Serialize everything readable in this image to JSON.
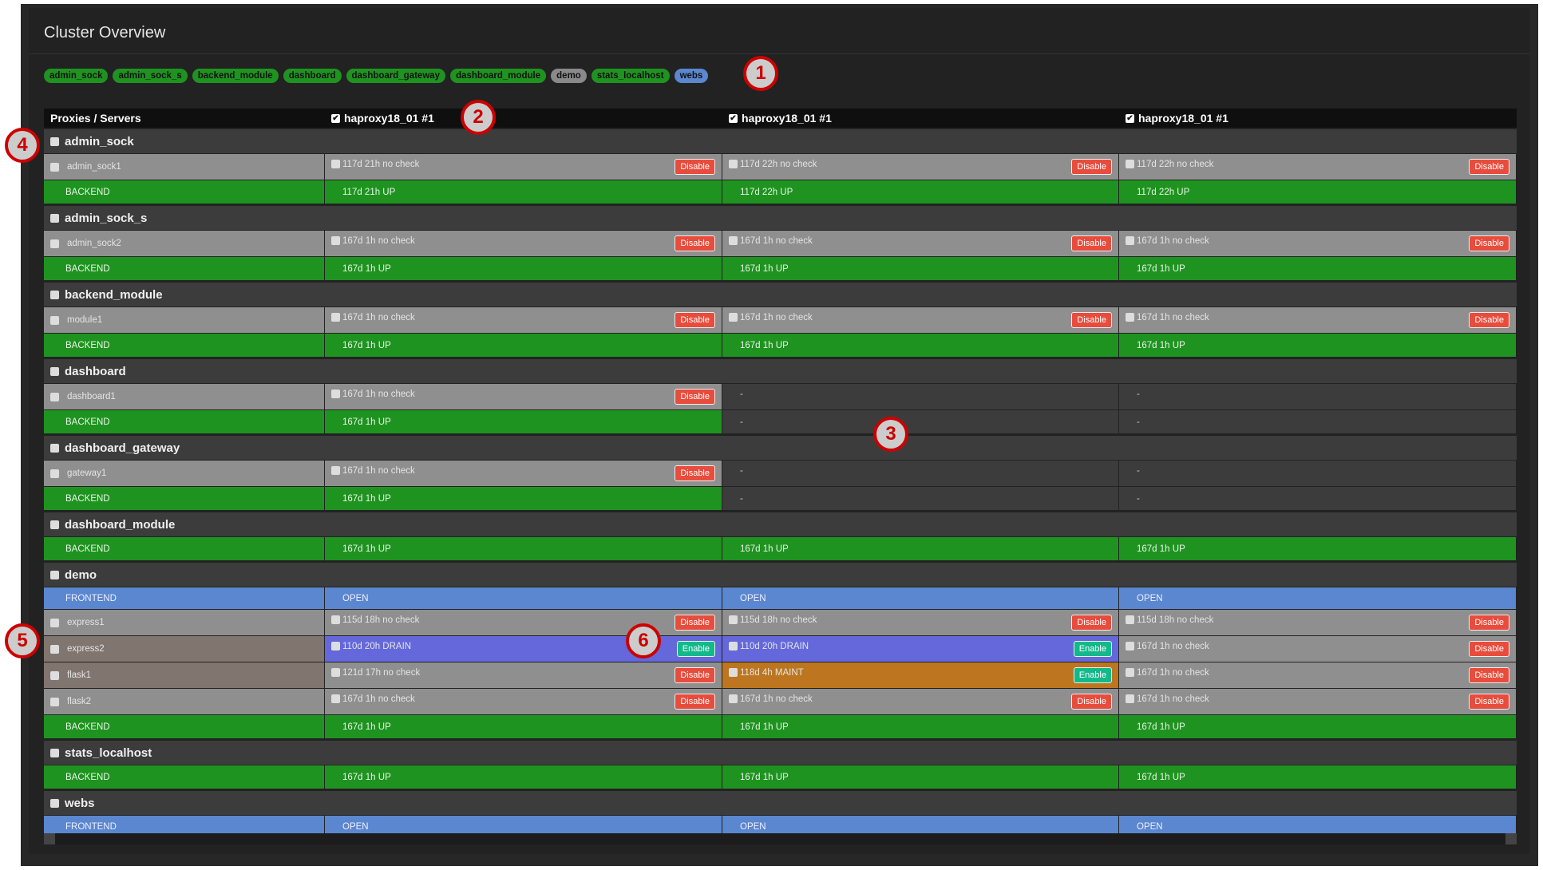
{
  "title": "Cluster Overview",
  "colors": {
    "up": "#1f9320",
    "open": "#5a87cf",
    "drain": "#6468db",
    "maint": "#bd761f",
    "disable": "#e74c3c",
    "enable": "#13b98a",
    "nocheck": "#8f8f8f"
  },
  "pills": [
    {
      "label": "admin_sock",
      "color": "#1f9320"
    },
    {
      "label": "admin_sock_s",
      "color": "#1f9320"
    },
    {
      "label": "backend_module",
      "color": "#1f9320"
    },
    {
      "label": "dashboard",
      "color": "#1f9320"
    },
    {
      "label": "dashboard_gateway",
      "color": "#1f9320"
    },
    {
      "label": "dashboard_module",
      "color": "#1f9320"
    },
    {
      "label": "demo",
      "color": "#8a8a8a"
    },
    {
      "label": "stats_localhost",
      "color": "#1f9320"
    },
    {
      "label": "webs",
      "color": "#5a87cf"
    }
  ],
  "header": {
    "first": "Proxies / Servers",
    "nodes": [
      "haproxy18_01 #1",
      "haproxy18_01 #1",
      "haproxy18_01 #1"
    ]
  },
  "groups": [
    {
      "name": "admin_sock",
      "rows": [
        {
          "type": "server",
          "label": "admin_sock1",
          "cells": [
            {
              "text": "117d 21h no check",
              "button": "Disable"
            },
            {
              "text": "117d 22h no check",
              "button": "Disable"
            },
            {
              "text": "117d 22h no check",
              "button": "Disable"
            }
          ]
        },
        {
          "type": "backend",
          "label": "BACKEND",
          "cells": [
            {
              "text": "117d 21h UP"
            },
            {
              "text": "117d 22h UP"
            },
            {
              "text": "117d 22h UP"
            }
          ]
        }
      ]
    },
    {
      "name": "admin_sock_s",
      "rows": [
        {
          "type": "server",
          "label": "admin_sock2",
          "cells": [
            {
              "text": "167d 1h no check",
              "button": "Disable"
            },
            {
              "text": "167d 1h no check",
              "button": "Disable"
            },
            {
              "text": "167d 1h no check",
              "button": "Disable"
            }
          ]
        },
        {
          "type": "backend",
          "label": "BACKEND",
          "cells": [
            {
              "text": "167d 1h UP"
            },
            {
              "text": "167d 1h UP"
            },
            {
              "text": "167d 1h UP"
            }
          ]
        }
      ]
    },
    {
      "name": "backend_module",
      "rows": [
        {
          "type": "server",
          "label": "module1",
          "cells": [
            {
              "text": "167d 1h no check",
              "button": "Disable"
            },
            {
              "text": "167d 1h no check",
              "button": "Disable"
            },
            {
              "text": "167d 1h no check",
              "button": "Disable"
            }
          ]
        },
        {
          "type": "backend",
          "label": "BACKEND",
          "cells": [
            {
              "text": "167d 1h UP"
            },
            {
              "text": "167d 1h UP"
            },
            {
              "text": "167d 1h UP"
            }
          ]
        }
      ]
    },
    {
      "name": "dashboard",
      "rows": [
        {
          "type": "server",
          "label": "dashboard1",
          "cells": [
            {
              "text": "167d 1h no check",
              "button": "Disable"
            },
            {
              "text": "-",
              "empty": true
            },
            {
              "text": "-",
              "empty": true
            }
          ]
        },
        {
          "type": "backend",
          "label": "BACKEND",
          "cells": [
            {
              "text": "167d 1h UP"
            },
            {
              "text": "-",
              "empty": true
            },
            {
              "text": "-",
              "empty": true
            }
          ]
        }
      ]
    },
    {
      "name": "dashboard_gateway",
      "rows": [
        {
          "type": "server",
          "label": "gateway1",
          "cells": [
            {
              "text": "167d 1h no check",
              "button": "Disable"
            },
            {
              "text": "-",
              "empty": true
            },
            {
              "text": "-",
              "empty": true
            }
          ]
        },
        {
          "type": "backend",
          "label": "BACKEND",
          "cells": [
            {
              "text": "167d 1h UP"
            },
            {
              "text": "-",
              "empty": true
            },
            {
              "text": "-",
              "empty": true
            }
          ]
        }
      ]
    },
    {
      "name": "dashboard_module",
      "rows": [
        {
          "type": "backend",
          "label": "BACKEND",
          "cells": [
            {
              "text": "167d 1h UP"
            },
            {
              "text": "167d 1h UP"
            },
            {
              "text": "167d 1h UP"
            }
          ]
        }
      ]
    },
    {
      "name": "demo",
      "rows": [
        {
          "type": "frontend",
          "label": "FRONTEND",
          "cells": [
            {
              "text": "OPEN"
            },
            {
              "text": "OPEN"
            },
            {
              "text": "OPEN"
            }
          ]
        },
        {
          "type": "server",
          "label": "express1",
          "cells": [
            {
              "text": "115d 18h no check",
              "button": "Disable"
            },
            {
              "text": "115d 18h no check",
              "button": "Disable"
            },
            {
              "text": "115d 18h no check",
              "button": "Disable"
            }
          ]
        },
        {
          "type": "server",
          "label": "express2",
          "warn": true,
          "cells": [
            {
              "text": "110d 20h DRAIN",
              "state": "drain",
              "button": "Enable"
            },
            {
              "text": "110d 20h DRAIN",
              "state": "drain",
              "button": "Enable"
            },
            {
              "text": "167d 1h no check",
              "button": "Disable"
            }
          ]
        },
        {
          "type": "server",
          "label": "flask1",
          "warn": true,
          "cells": [
            {
              "text": "121d 17h no check",
              "button": "Disable"
            },
            {
              "text": "118d 4h MAINT",
              "state": "maint",
              "button": "Enable"
            },
            {
              "text": "167d 1h no check",
              "button": "Disable"
            }
          ]
        },
        {
          "type": "server",
          "label": "flask2",
          "cells": [
            {
              "text": "167d 1h no check",
              "button": "Disable"
            },
            {
              "text": "167d 1h no check",
              "button": "Disable"
            },
            {
              "text": "167d 1h no check",
              "button": "Disable"
            }
          ]
        },
        {
          "type": "backend",
          "label": "BACKEND",
          "cells": [
            {
              "text": "167d 1h UP"
            },
            {
              "text": "167d 1h UP"
            },
            {
              "text": "167d 1h UP"
            }
          ]
        }
      ]
    },
    {
      "name": "stats_localhost",
      "rows": [
        {
          "type": "backend",
          "label": "BACKEND",
          "cells": [
            {
              "text": "167d 1h UP"
            },
            {
              "text": "167d 1h UP"
            },
            {
              "text": "167d 1h UP"
            }
          ]
        }
      ]
    },
    {
      "name": "webs",
      "rows": [
        {
          "type": "frontend",
          "label": "FRONTEND",
          "cells": [
            {
              "text": "OPEN"
            },
            {
              "text": "OPEN"
            },
            {
              "text": "OPEN"
            }
          ]
        }
      ]
    }
  ],
  "annotations": [
    "1",
    "2",
    "3",
    "4",
    "5",
    "6"
  ]
}
